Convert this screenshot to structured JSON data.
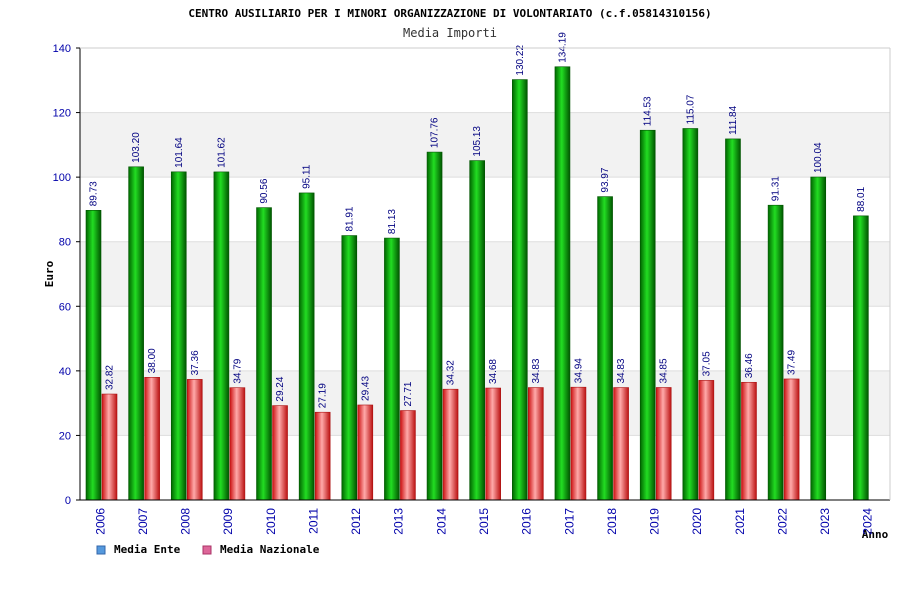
{
  "chart_data": {
    "type": "bar",
    "title": "CENTRO AUSILIARIO PER I MINORI ORGANIZZAZIONE DI VOLONTARIATO (c.f.05814310156)",
    "subtitle": "Media Importi",
    "xlabel": "Anno",
    "ylabel": "Euro",
    "ylim": [
      0,
      140
    ],
    "yticks": [
      0,
      20,
      40,
      60,
      80,
      100,
      120,
      140
    ],
    "categories": [
      "2006",
      "2007",
      "2008",
      "2009",
      "2010",
      "2011",
      "2012",
      "2013",
      "2014",
      "2015",
      "2016",
      "2017",
      "2018",
      "2019",
      "2020",
      "2021",
      "2022",
      "2023",
      "2024"
    ],
    "series": [
      {
        "name": "Media Ente",
        "color": "#00aa00",
        "values": [
          89.73,
          103.2,
          101.64,
          101.62,
          90.56,
          95.11,
          81.91,
          81.13,
          107.76,
          105.13,
          130.22,
          134.19,
          93.97,
          114.53,
          115.07,
          111.84,
          91.31,
          100.04,
          88.01
        ],
        "labels": [
          "89.73",
          "103.20",
          "101.64",
          "101.62",
          "90.56",
          "95.11",
          "81.91",
          "81.13",
          "107.76",
          "105.13",
          "130.22",
          "134.19",
          "93.97",
          "114.53",
          "115.07",
          "111.84",
          "91.31",
          "100.04",
          "88.01"
        ]
      },
      {
        "name": "Media Nazionale",
        "color": "#dd2222",
        "values": [
          32.82,
          38.0,
          37.36,
          34.79,
          29.24,
          27.19,
          29.43,
          27.71,
          34.32,
          34.68,
          34.83,
          34.94,
          34.83,
          34.85,
          37.05,
          36.46,
          37.49,
          null,
          null
        ],
        "labels": [
          "32.82",
          "38.00",
          "37.36",
          "34.79",
          "29.24",
          "27.19",
          "29.43",
          "27.71",
          "34.32",
          "34.68",
          "34.83",
          "34.94",
          "34.83",
          "34.85",
          "37.05",
          "36.46",
          "37.49",
          null,
          null
        ]
      }
    ],
    "legend": [
      {
        "label": "Media Ente",
        "color": "#5599dd"
      },
      {
        "label": "Media Nazionale",
        "color": "#dd6699"
      }
    ],
    "grid": true,
    "legend_position": "bottom-left"
  }
}
